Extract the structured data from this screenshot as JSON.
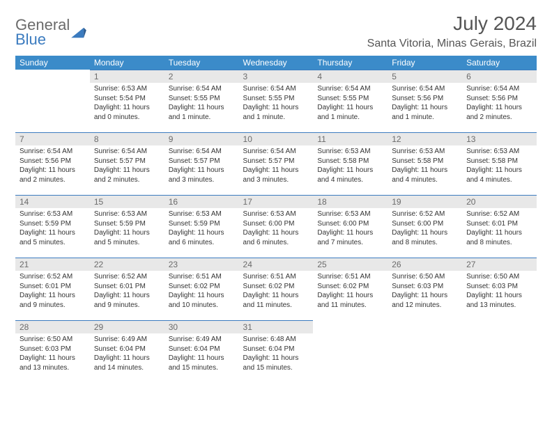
{
  "logo": {
    "line1": "General",
    "line2": "Blue"
  },
  "title": "July 2024",
  "location": "Santa Vitoria, Minas Gerais, Brazil",
  "colors": {
    "header_bg": "#3b8bc9",
    "accent": "#3b7bbf",
    "daynum_bg": "#e8e8e8",
    "text": "#333333",
    "title_text": "#555555"
  },
  "weekdays": [
    "Sunday",
    "Monday",
    "Tuesday",
    "Wednesday",
    "Thursday",
    "Friday",
    "Saturday"
  ],
  "start_weekday": 1,
  "days": [
    {
      "n": 1,
      "sunrise": "6:53 AM",
      "sunset": "5:54 PM",
      "daylight": "11 hours and 0 minutes."
    },
    {
      "n": 2,
      "sunrise": "6:54 AM",
      "sunset": "5:55 PM",
      "daylight": "11 hours and 1 minute."
    },
    {
      "n": 3,
      "sunrise": "6:54 AM",
      "sunset": "5:55 PM",
      "daylight": "11 hours and 1 minute."
    },
    {
      "n": 4,
      "sunrise": "6:54 AM",
      "sunset": "5:55 PM",
      "daylight": "11 hours and 1 minute."
    },
    {
      "n": 5,
      "sunrise": "6:54 AM",
      "sunset": "5:56 PM",
      "daylight": "11 hours and 1 minute."
    },
    {
      "n": 6,
      "sunrise": "6:54 AM",
      "sunset": "5:56 PM",
      "daylight": "11 hours and 2 minutes."
    },
    {
      "n": 7,
      "sunrise": "6:54 AM",
      "sunset": "5:56 PM",
      "daylight": "11 hours and 2 minutes."
    },
    {
      "n": 8,
      "sunrise": "6:54 AM",
      "sunset": "5:57 PM",
      "daylight": "11 hours and 2 minutes."
    },
    {
      "n": 9,
      "sunrise": "6:54 AM",
      "sunset": "5:57 PM",
      "daylight": "11 hours and 3 minutes."
    },
    {
      "n": 10,
      "sunrise": "6:54 AM",
      "sunset": "5:57 PM",
      "daylight": "11 hours and 3 minutes."
    },
    {
      "n": 11,
      "sunrise": "6:53 AM",
      "sunset": "5:58 PM",
      "daylight": "11 hours and 4 minutes."
    },
    {
      "n": 12,
      "sunrise": "6:53 AM",
      "sunset": "5:58 PM",
      "daylight": "11 hours and 4 minutes."
    },
    {
      "n": 13,
      "sunrise": "6:53 AM",
      "sunset": "5:58 PM",
      "daylight": "11 hours and 4 minutes."
    },
    {
      "n": 14,
      "sunrise": "6:53 AM",
      "sunset": "5:59 PM",
      "daylight": "11 hours and 5 minutes."
    },
    {
      "n": 15,
      "sunrise": "6:53 AM",
      "sunset": "5:59 PM",
      "daylight": "11 hours and 5 minutes."
    },
    {
      "n": 16,
      "sunrise": "6:53 AM",
      "sunset": "5:59 PM",
      "daylight": "11 hours and 6 minutes."
    },
    {
      "n": 17,
      "sunrise": "6:53 AM",
      "sunset": "6:00 PM",
      "daylight": "11 hours and 6 minutes."
    },
    {
      "n": 18,
      "sunrise": "6:53 AM",
      "sunset": "6:00 PM",
      "daylight": "11 hours and 7 minutes."
    },
    {
      "n": 19,
      "sunrise": "6:52 AM",
      "sunset": "6:00 PM",
      "daylight": "11 hours and 8 minutes."
    },
    {
      "n": 20,
      "sunrise": "6:52 AM",
      "sunset": "6:01 PM",
      "daylight": "11 hours and 8 minutes."
    },
    {
      "n": 21,
      "sunrise": "6:52 AM",
      "sunset": "6:01 PM",
      "daylight": "11 hours and 9 minutes."
    },
    {
      "n": 22,
      "sunrise": "6:52 AM",
      "sunset": "6:01 PM",
      "daylight": "11 hours and 9 minutes."
    },
    {
      "n": 23,
      "sunrise": "6:51 AM",
      "sunset": "6:02 PM",
      "daylight": "11 hours and 10 minutes."
    },
    {
      "n": 24,
      "sunrise": "6:51 AM",
      "sunset": "6:02 PM",
      "daylight": "11 hours and 11 minutes."
    },
    {
      "n": 25,
      "sunrise": "6:51 AM",
      "sunset": "6:02 PM",
      "daylight": "11 hours and 11 minutes."
    },
    {
      "n": 26,
      "sunrise": "6:50 AM",
      "sunset": "6:03 PM",
      "daylight": "11 hours and 12 minutes."
    },
    {
      "n": 27,
      "sunrise": "6:50 AM",
      "sunset": "6:03 PM",
      "daylight": "11 hours and 13 minutes."
    },
    {
      "n": 28,
      "sunrise": "6:50 AM",
      "sunset": "6:03 PM",
      "daylight": "11 hours and 13 minutes."
    },
    {
      "n": 29,
      "sunrise": "6:49 AM",
      "sunset": "6:04 PM",
      "daylight": "11 hours and 14 minutes."
    },
    {
      "n": 30,
      "sunrise": "6:49 AM",
      "sunset": "6:04 PM",
      "daylight": "11 hours and 15 minutes."
    },
    {
      "n": 31,
      "sunrise": "6:48 AM",
      "sunset": "6:04 PM",
      "daylight": "11 hours and 15 minutes."
    }
  ],
  "labels": {
    "sunrise": "Sunrise:",
    "sunset": "Sunset:",
    "daylight": "Daylight:"
  }
}
